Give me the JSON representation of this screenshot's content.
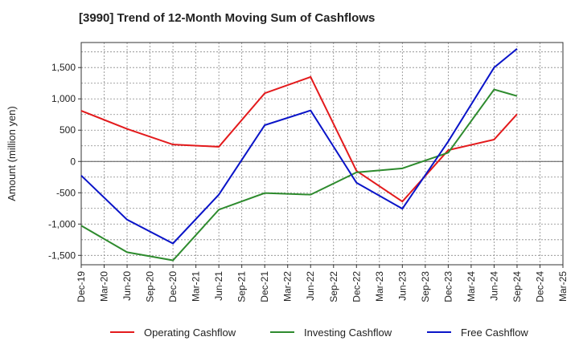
{
  "chart_data": {
    "type": "line",
    "title": "[3990]  Trend of 12-Month Moving Sum of Cashflows",
    "xlabel": "",
    "ylabel": "Amount (million yen)",
    "categories": [
      "Dec-19",
      "Mar-20",
      "Jun-20",
      "Sep-20",
      "Dec-20",
      "Mar-21",
      "Jun-21",
      "Sep-21",
      "Dec-21",
      "Mar-22",
      "Jun-22",
      "Sep-22",
      "Dec-22",
      "Mar-23",
      "Jun-23",
      "Sep-23",
      "Dec-23",
      "Mar-24",
      "Jun-24",
      "Sep-24",
      "Dec-24",
      "Mar-25"
    ],
    "ylim": [
      -1650,
      1900
    ],
    "yticks": [
      1500,
      1000,
      500,
      0,
      -500,
      -1000,
      -1500
    ],
    "ytick_labels": [
      "1,500",
      "1,000",
      "500",
      "0",
      "-500",
      "-1,000",
      "-1,500"
    ],
    "grid": true,
    "legend_position": "bottom",
    "series": [
      {
        "name": "Operating Cashflow",
        "color": "#e31a1c",
        "points": [
          {
            "x": "Dec-19",
            "y": 810
          },
          {
            "x": "Jun-20",
            "y": 520
          },
          {
            "x": "Dec-20",
            "y": 270
          },
          {
            "x": "Jun-21",
            "y": 235
          },
          {
            "x": "Dec-21",
            "y": 1090
          },
          {
            "x": "Jun-22",
            "y": 1350
          },
          {
            "x": "Dec-22",
            "y": -150
          },
          {
            "x": "Jun-23",
            "y": -640
          },
          {
            "x": "Dec-23",
            "y": 180
          },
          {
            "x": "Jun-24",
            "y": 350
          },
          {
            "x": "Sep-24",
            "y": 755
          }
        ]
      },
      {
        "name": "Investing Cashflow",
        "color": "#2e8b2e",
        "points": [
          {
            "x": "Dec-19",
            "y": -1025
          },
          {
            "x": "Jun-20",
            "y": -1450
          },
          {
            "x": "Dec-20",
            "y": -1580
          },
          {
            "x": "Jun-21",
            "y": -770
          },
          {
            "x": "Dec-21",
            "y": -505
          },
          {
            "x": "Jun-22",
            "y": -530
          },
          {
            "x": "Dec-22",
            "y": -175
          },
          {
            "x": "Jun-23",
            "y": -110
          },
          {
            "x": "Dec-23",
            "y": 140
          },
          {
            "x": "Jun-24",
            "y": 1150
          },
          {
            "x": "Sep-24",
            "y": 1045
          }
        ]
      },
      {
        "name": "Free Cashflow",
        "color": "#0a14c8",
        "points": [
          {
            "x": "Dec-19",
            "y": -225
          },
          {
            "x": "Jun-20",
            "y": -930
          },
          {
            "x": "Dec-20",
            "y": -1310
          },
          {
            "x": "Jun-21",
            "y": -530
          },
          {
            "x": "Dec-21",
            "y": 580
          },
          {
            "x": "Jun-22",
            "y": 815
          },
          {
            "x": "Dec-22",
            "y": -340
          },
          {
            "x": "Jun-23",
            "y": -755
          },
          {
            "x": "Dec-23",
            "y": 320
          },
          {
            "x": "Jun-24",
            "y": 1500
          },
          {
            "x": "Sep-24",
            "y": 1800
          }
        ]
      }
    ]
  }
}
